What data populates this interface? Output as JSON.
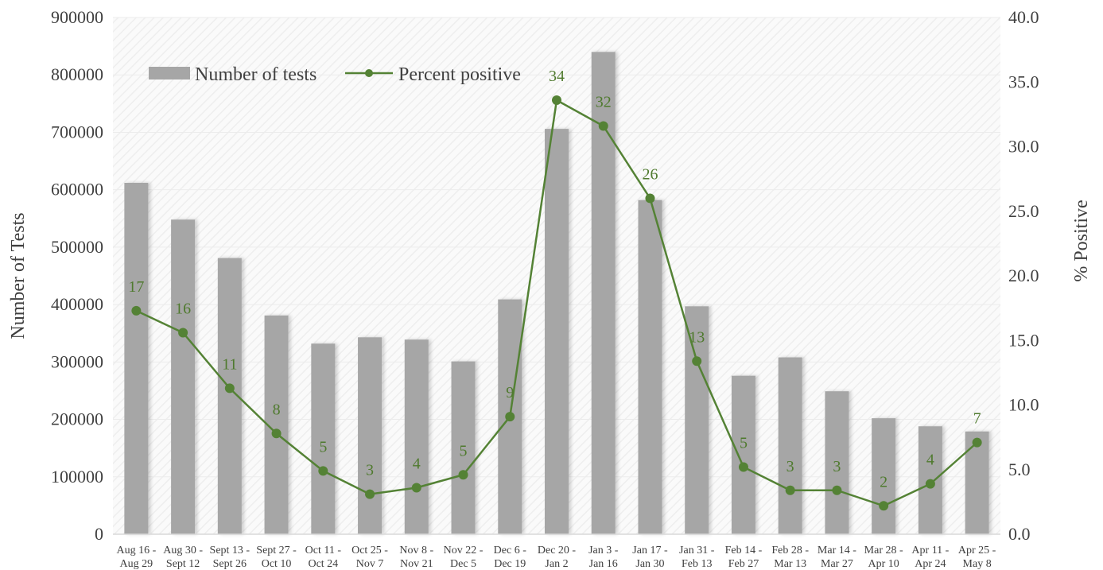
{
  "chart_data": {
    "type": "bar+line",
    "categories": [
      [
        "Aug 16 -",
        "Aug 29"
      ],
      [
        "Aug 30 -",
        "Sept 12"
      ],
      [
        "Sept 13 -",
        "Sept 26"
      ],
      [
        "Sept 27 -",
        "Oct 10"
      ],
      [
        "Oct 11 -",
        "Oct 24"
      ],
      [
        "Oct 25 -",
        "Nov 7"
      ],
      [
        "Nov 8 -",
        "Nov 21"
      ],
      [
        "Nov 22 -",
        "Dec 5"
      ],
      [
        "Dec 6 -",
        "Dec 19"
      ],
      [
        "Dec 20 -",
        "Jan 2"
      ],
      [
        "Jan 3 -",
        "Jan 16"
      ],
      [
        "Jan 17 -",
        "Jan 30"
      ],
      [
        "Jan 31 -",
        "Feb 13"
      ],
      [
        "Feb 14 -",
        "Feb 27"
      ],
      [
        "Feb 28 -",
        "Mar 13"
      ],
      [
        "Mar 14 -",
        "Mar 27"
      ],
      [
        "Mar 28 -",
        "Apr 10"
      ],
      [
        "Apr 11 -",
        "Apr 24"
      ],
      [
        "Apr 25 -",
        "May 8"
      ]
    ],
    "series": [
      {
        "name": "Number of tests",
        "type": "bar",
        "axis": "left",
        "color": "#a6a6a6",
        "values": [
          612000,
          548000,
          481000,
          381000,
          332000,
          343000,
          339000,
          301000,
          409000,
          706000,
          840000,
          582000,
          397000,
          276000,
          308000,
          249000,
          202000,
          188000,
          179000
        ]
      },
      {
        "name": "Percent positive",
        "type": "line",
        "axis": "right",
        "color": "#548235",
        "values": [
          17.3,
          15.6,
          11.3,
          7.8,
          4.9,
          3.1,
          3.6,
          4.6,
          9.1,
          33.6,
          31.6,
          26.0,
          13.4,
          5.2,
          3.4,
          3.4,
          2.2,
          3.9,
          7.1
        ],
        "labels": [
          "17",
          "16",
          "11",
          "8",
          "5",
          "3",
          "4",
          "5",
          "9",
          "34",
          "32",
          "26",
          "13",
          "5",
          "3",
          "3",
          "2",
          "4",
          "7"
        ]
      }
    ],
    "y_left": {
      "label": "Number of Tests",
      "lim": [
        0,
        900000
      ],
      "ticks": [
        "0",
        "100000",
        "200000",
        "300000",
        "400000",
        "500000",
        "600000",
        "700000",
        "800000",
        "900000"
      ]
    },
    "y_right": {
      "label": "% Positive",
      "lim": [
        0,
        40
      ],
      "ticks": [
        "0.0",
        "5.0",
        "10.0",
        "15.0",
        "20.0",
        "25.0",
        "30.0",
        "35.0",
        "40.0"
      ]
    },
    "grid": true,
    "legend_position": "top-left"
  }
}
